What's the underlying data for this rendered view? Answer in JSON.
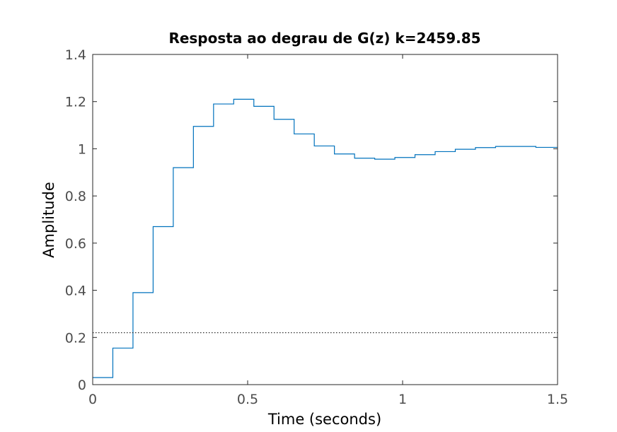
{
  "chart_data": {
    "type": "line",
    "title": "Resposta ao degrau de G(z) k=2459.85",
    "xlabel": "Time (seconds)",
    "ylabel": "Amplitude",
    "xlim": [
      0,
      1.5
    ],
    "ylim": [
      0,
      1.4
    ],
    "xticks": [
      0,
      0.5,
      1,
      1.5
    ],
    "xtick_labels": [
      "0",
      "0.5",
      "1",
      "1.5"
    ],
    "yticks": [
      0,
      0.2,
      0.4,
      0.6,
      0.8,
      1,
      1.2,
      1.4
    ],
    "ytick_labels": [
      "0",
      "0.2",
      "0.4",
      "0.6",
      "0.8",
      "1",
      "1.2",
      "1.4"
    ],
    "grid": false,
    "legend": "none",
    "series": [
      {
        "style": "stairs",
        "color": "#0072bd",
        "x": [
          0,
          0.065,
          0.13,
          0.195,
          0.26,
          0.325,
          0.39,
          0.455,
          0.52,
          0.585,
          0.65,
          0.715,
          0.78,
          0.845,
          0.91,
          0.975,
          1.04,
          1.105,
          1.17,
          1.235,
          1.3,
          1.365,
          1.43,
          1.5
        ],
        "y": [
          0.03,
          0.155,
          0.39,
          0.67,
          0.92,
          1.095,
          1.19,
          1.21,
          1.18,
          1.125,
          1.063,
          1.012,
          0.978,
          0.96,
          0.956,
          0.963,
          0.975,
          0.988,
          0.998,
          1.005,
          1.01,
          1.01,
          1.006,
          1.006
        ]
      },
      {
        "style": "dotted",
        "color": "#000000",
        "x": [
          0,
          1.5
        ],
        "y": [
          0.22,
          0.22
        ]
      }
    ]
  }
}
